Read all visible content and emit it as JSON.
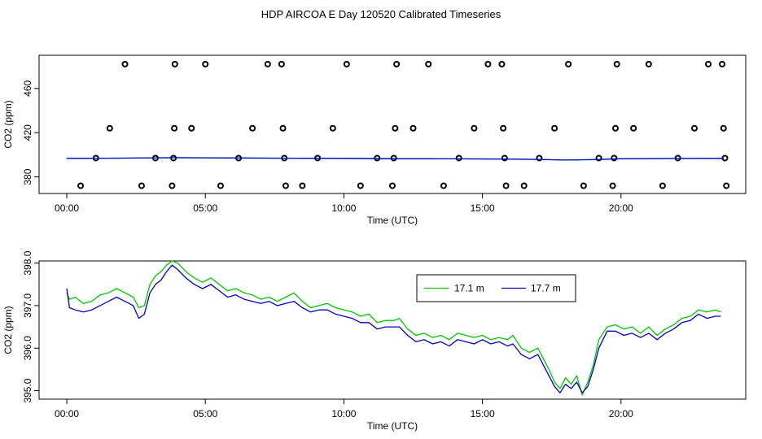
{
  "title": "HDP AIRCOA E  Day 120520  Calibrated Timeseries",
  "chart_data": [
    {
      "type": "scatter",
      "xlabel": "Time (UTC)",
      "ylabel": "CO2 (ppm)",
      "x_unit": "hours UTC",
      "xlim": [
        -1,
        24.5
      ],
      "ylim": [
        365,
        490
      ],
      "x_ticks": [
        0,
        5,
        10,
        15,
        20
      ],
      "x_tick_labels": [
        "00:00",
        "05:00",
        "10:00",
        "15:00",
        "20:00"
      ],
      "y_ticks": [
        380,
        420,
        460
      ],
      "y_tick_labels": [
        "380",
        "420",
        "460"
      ],
      "grid": false,
      "points": [
        [
          0.5,
          372
        ],
        [
          1.05,
          397
        ],
        [
          1.55,
          424
        ],
        [
          2.1,
          482
        ],
        [
          2.7,
          372
        ],
        [
          3.2,
          397
        ],
        [
          3.8,
          372
        ],
        [
          3.85,
          397
        ],
        [
          3.88,
          424
        ],
        [
          3.9,
          482
        ],
        [
          4.5,
          424
        ],
        [
          5.0,
          482
        ],
        [
          5.55,
          372
        ],
        [
          6.2,
          397
        ],
        [
          6.7,
          424
        ],
        [
          7.25,
          482
        ],
        [
          7.75,
          482
        ],
        [
          7.8,
          424
        ],
        [
          7.85,
          397
        ],
        [
          7.9,
          372
        ],
        [
          8.5,
          372
        ],
        [
          9.05,
          397
        ],
        [
          9.6,
          424
        ],
        [
          10.1,
          482
        ],
        [
          10.6,
          372
        ],
        [
          11.2,
          397
        ],
        [
          11.75,
          372
        ],
        [
          11.8,
          397
        ],
        [
          11.85,
          424
        ],
        [
          11.9,
          482
        ],
        [
          12.5,
          424
        ],
        [
          13.05,
          482
        ],
        [
          13.6,
          372
        ],
        [
          14.15,
          397
        ],
        [
          14.7,
          424
        ],
        [
          15.2,
          482
        ],
        [
          15.7,
          482
        ],
        [
          15.75,
          424
        ],
        [
          15.8,
          397
        ],
        [
          15.85,
          372
        ],
        [
          16.5,
          372
        ],
        [
          17.05,
          397
        ],
        [
          17.6,
          424
        ],
        [
          18.1,
          482
        ],
        [
          18.65,
          372
        ],
        [
          19.2,
          397
        ],
        [
          19.7,
          372
        ],
        [
          19.75,
          397
        ],
        [
          19.8,
          424
        ],
        [
          19.85,
          482
        ],
        [
          20.45,
          424
        ],
        [
          21.0,
          482
        ],
        [
          21.5,
          372
        ],
        [
          22.05,
          397
        ],
        [
          22.65,
          424
        ],
        [
          23.15,
          482
        ],
        [
          23.65,
          482
        ],
        [
          23.7,
          424
        ],
        [
          23.75,
          397
        ],
        [
          23.8,
          372
        ]
      ],
      "series": [
        {
          "name": "17.1 m",
          "color": "#00c800",
          "x": [
            0,
            2,
            4,
            6,
            8,
            10,
            12,
            14,
            16,
            17,
            18,
            19,
            20,
            22,
            23.7
          ],
          "values": [
            396.8,
            397.0,
            397.3,
            397.1,
            396.9,
            396.8,
            396.5,
            396.3,
            396.2,
            395.8,
            395.2,
            395.6,
            396.4,
            396.6,
            396.8
          ]
        },
        {
          "name": "17.7 m",
          "color": "#0000c8",
          "x": [
            0,
            2,
            4,
            6,
            8,
            10,
            12,
            14,
            16,
            17,
            18,
            19,
            20,
            22,
            23.7
          ],
          "values": [
            396.8,
            397.0,
            397.4,
            397.1,
            396.9,
            396.8,
            396.4,
            396.3,
            396.1,
            395.8,
            395.2,
            395.6,
            396.4,
            396.7,
            396.8
          ]
        }
      ]
    },
    {
      "type": "line",
      "xlabel": "Time (UTC)",
      "ylabel": "CO2 (ppm)",
      "x_unit": "hours UTC",
      "xlim": [
        -1,
        24.5
      ],
      "ylim": [
        394.8,
        398.05
      ],
      "x_ticks": [
        0,
        5,
        10,
        15,
        20
      ],
      "x_tick_labels": [
        "00:00",
        "05:00",
        "10:00",
        "15:00",
        "20:00"
      ],
      "y_ticks": [
        395,
        396,
        397,
        398
      ],
      "y_tick_labels": [
        "395.0",
        "396.0",
        "397.0",
        "398.0"
      ],
      "grid": false,
      "legend_position": "top-right",
      "series": [
        {
          "name": "17.1 m",
          "color": "#00c800",
          "x": [
            0,
            0.1,
            0.3,
            0.6,
            0.9,
            1.2,
            1.5,
            1.8,
            2.1,
            2.4,
            2.6,
            2.8,
            3.0,
            3.2,
            3.4,
            3.6,
            3.8,
            4.0,
            4.3,
            4.6,
            4.9,
            5.2,
            5.5,
            5.8,
            6.1,
            6.4,
            6.7,
            7.0,
            7.3,
            7.6,
            7.9,
            8.2,
            8.5,
            8.8,
            9.1,
            9.4,
            9.7,
            10.0,
            10.3,
            10.6,
            10.9,
            11.2,
            11.5,
            11.8,
            12.0,
            12.3,
            12.6,
            12.9,
            13.2,
            13.5,
            13.8,
            14.1,
            14.4,
            14.7,
            15.0,
            15.3,
            15.6,
            15.9,
            16.1,
            16.4,
            16.7,
            17.0,
            17.2,
            17.4,
            17.6,
            17.8,
            18.0,
            18.2,
            18.4,
            18.6,
            18.8,
            19.0,
            19.2,
            19.5,
            19.8,
            20.1,
            20.4,
            20.7,
            21.0,
            21.3,
            21.6,
            21.9,
            22.2,
            22.5,
            22.8,
            23.1,
            23.4,
            23.6
          ],
          "values": [
            397.3,
            397.15,
            397.2,
            397.05,
            397.1,
            397.25,
            397.3,
            397.4,
            397.3,
            397.2,
            396.95,
            397.0,
            397.5,
            397.7,
            397.8,
            397.95,
            398.05,
            398.0,
            397.8,
            397.65,
            397.55,
            397.65,
            397.5,
            397.35,
            397.4,
            397.3,
            397.25,
            397.15,
            397.2,
            397.1,
            397.2,
            397.3,
            397.1,
            396.95,
            397.0,
            397.05,
            396.95,
            396.9,
            396.85,
            396.75,
            396.8,
            396.6,
            396.65,
            396.65,
            396.7,
            396.45,
            396.3,
            396.35,
            396.25,
            396.3,
            396.2,
            396.35,
            396.3,
            396.25,
            396.3,
            396.2,
            396.25,
            396.2,
            396.3,
            396.0,
            395.9,
            396.0,
            395.75,
            395.5,
            395.2,
            395.05,
            395.3,
            395.15,
            395.35,
            394.9,
            395.2,
            395.6,
            396.2,
            396.5,
            396.55,
            396.45,
            396.5,
            396.35,
            396.5,
            396.3,
            396.45,
            396.55,
            396.7,
            396.75,
            396.9,
            396.85,
            396.9,
            396.85
          ]
        },
        {
          "name": "17.7 m",
          "color": "#0000c8",
          "x": [
            0,
            0.1,
            0.3,
            0.6,
            0.9,
            1.2,
            1.5,
            1.8,
            2.1,
            2.4,
            2.6,
            2.8,
            3.0,
            3.2,
            3.4,
            3.6,
            3.8,
            4.0,
            4.3,
            4.6,
            4.9,
            5.2,
            5.5,
            5.8,
            6.1,
            6.4,
            6.7,
            7.0,
            7.3,
            7.6,
            7.9,
            8.2,
            8.5,
            8.8,
            9.1,
            9.4,
            9.7,
            10.0,
            10.3,
            10.6,
            10.9,
            11.2,
            11.5,
            11.8,
            12.0,
            12.3,
            12.6,
            12.9,
            13.2,
            13.5,
            13.8,
            14.1,
            14.4,
            14.7,
            15.0,
            15.3,
            15.6,
            15.9,
            16.1,
            16.4,
            16.7,
            17.0,
            17.2,
            17.4,
            17.6,
            17.8,
            18.0,
            18.2,
            18.4,
            18.6,
            18.8,
            19.0,
            19.2,
            19.5,
            19.8,
            20.1,
            20.4,
            20.7,
            21.0,
            21.3,
            21.6,
            21.9,
            22.2,
            22.5,
            22.8,
            23.1,
            23.4,
            23.6
          ],
          "values": [
            397.4,
            396.95,
            396.9,
            396.85,
            396.9,
            397.0,
            397.1,
            397.2,
            397.1,
            397.0,
            396.7,
            396.8,
            397.3,
            397.5,
            397.6,
            397.8,
            397.95,
            397.85,
            397.65,
            397.5,
            397.4,
            397.5,
            397.35,
            397.2,
            397.25,
            397.15,
            397.1,
            397.05,
            397.1,
            397.0,
            397.05,
            397.1,
            396.95,
            396.85,
            396.9,
            396.9,
            396.8,
            396.75,
            396.7,
            396.6,
            396.6,
            396.45,
            396.5,
            396.5,
            396.5,
            396.3,
            396.15,
            396.2,
            396.1,
            396.15,
            396.05,
            396.2,
            396.15,
            396.1,
            396.2,
            396.1,
            396.15,
            396.05,
            396.1,
            395.85,
            395.75,
            395.85,
            395.6,
            395.35,
            395.1,
            394.95,
            395.15,
            395.05,
            395.2,
            394.95,
            395.1,
            395.5,
            396.0,
            396.4,
            396.4,
            396.3,
            396.35,
            396.25,
            396.35,
            396.2,
            396.35,
            396.45,
            396.6,
            396.65,
            396.8,
            396.7,
            396.75,
            396.75
          ]
        }
      ]
    }
  ]
}
